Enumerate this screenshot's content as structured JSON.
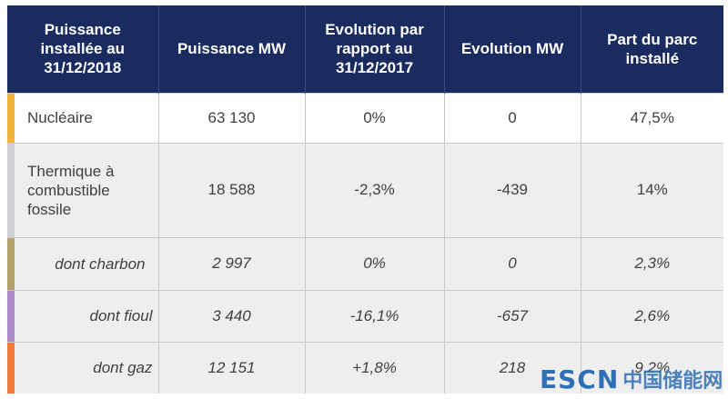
{
  "header": {
    "col1": "Puissance installée au 31/12/2018",
    "col2": "Puissance MW",
    "col3": "Evolution par rapport au 31/12/2017",
    "col4": "Evolution MW",
    "col5": "Part du parc installé"
  },
  "rows": [
    {
      "label": "Nucléaire",
      "puissance": "63 130",
      "evolution_pct": "0%",
      "evolution_mw": "0",
      "part": "47,5%",
      "color": "#f2b43c"
    },
    {
      "label": "Thermique à combustible fossile",
      "puissance": "18 588",
      "evolution_pct": "-2,3%",
      "evolution_mw": "-439",
      "part": "14%",
      "color": "#cfcfd4"
    },
    {
      "label": "dont charbon",
      "puissance": "2 997",
      "evolution_pct": "0%",
      "evolution_mw": "0",
      "part": "2,3%",
      "color": "#b3a06a"
    },
    {
      "label": "dont fioul",
      "puissance": "3 440",
      "evolution_pct": "-16,1%",
      "evolution_mw": "-657",
      "part": "2,6%",
      "color": "#a98ac6"
    },
    {
      "label": "dont gaz",
      "puissance": "12 151",
      "evolution_pct": "+1,8%",
      "evolution_mw": "218",
      "part": "9,2%",
      "color": "#f07a3a"
    }
  ],
  "watermark": {
    "latin": "ESCN",
    "chinese": "中国储能网"
  }
}
